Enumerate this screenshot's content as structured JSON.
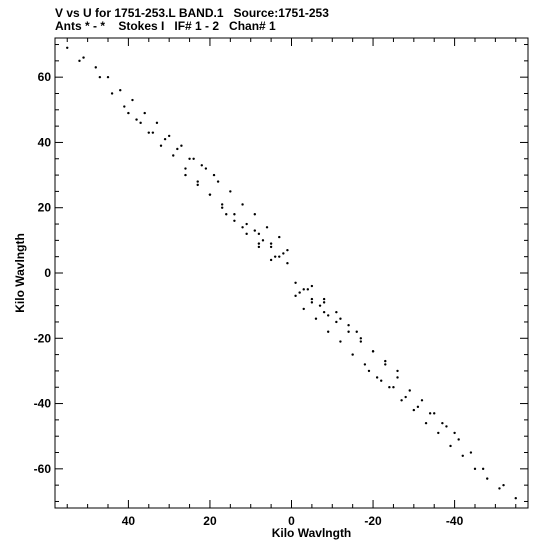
{
  "chart_data": {
    "type": "scatter",
    "title": "V vs U for 1751-253.L BAND.1   Source:1751-253",
    "subtitle": "Ants * - *    Stokes I   IF# 1 - 2   Chan# 1",
    "xlabel": "Kilo Wavlngth",
    "ylabel": "Kilo Wavlngth",
    "xlim": [
      58,
      -58
    ],
    "ylim": [
      -72,
      72
    ],
    "x_reversed": true,
    "grid": false,
    "xticks": [
      40,
      20,
      0,
      -20,
      -40
    ],
    "xtick_labels": [
      "40",
      "20",
      "0",
      "-20",
      "-40"
    ],
    "yticks": [
      60,
      40,
      20,
      0,
      -20,
      -40,
      -60
    ],
    "ytick_labels": [
      "60",
      "40",
      "20",
      "0",
      "-20",
      "-40",
      "-60"
    ],
    "series": [
      {
        "marker": "dot",
        "color": "#000000",
        "points": [
          [
            55,
            69
          ],
          [
            51,
            66
          ],
          [
            48,
            63
          ],
          [
            45,
            60
          ],
          [
            42,
            56
          ],
          [
            39,
            53
          ],
          [
            36,
            49
          ],
          [
            33,
            46
          ],
          [
            30,
            42
          ],
          [
            27,
            39
          ],
          [
            24,
            35
          ],
          [
            21,
            32
          ],
          [
            18,
            28
          ],
          [
            15,
            25
          ],
          [
            12,
            21
          ],
          [
            9,
            18
          ],
          [
            6,
            14
          ],
          [
            3,
            11
          ],
          [
            1,
            7
          ],
          [
            -1,
            -7
          ],
          [
            -3,
            -11
          ],
          [
            -6,
            -14
          ],
          [
            -9,
            -18
          ],
          [
            -12,
            -21
          ],
          [
            -15,
            -25
          ],
          [
            -18,
            -28
          ],
          [
            -21,
            -32
          ],
          [
            -24,
            -35
          ],
          [
            -27,
            -39
          ],
          [
            -30,
            -42
          ],
          [
            -33,
            -46
          ],
          [
            -36,
            -49
          ],
          [
            -39,
            -53
          ],
          [
            -42,
            -56
          ],
          [
            -45,
            -60
          ],
          [
            -48,
            -63
          ],
          [
            -51,
            -66
          ],
          [
            -55,
            -69
          ],
          [
            52,
            65
          ],
          [
            47,
            60
          ],
          [
            44,
            55
          ],
          [
            41,
            51
          ],
          [
            38,
            47
          ],
          [
            35,
            43
          ],
          [
            32,
            39
          ],
          [
            29,
            36
          ],
          [
            26,
            32
          ],
          [
            23,
            28
          ],
          [
            20,
            24
          ],
          [
            17,
            20
          ],
          [
            14,
            16
          ],
          [
            11,
            12
          ],
          [
            8,
            8
          ],
          [
            5,
            4
          ],
          [
            -5,
            -4
          ],
          [
            -8,
            -8
          ],
          [
            -11,
            -12
          ],
          [
            -14,
            -16
          ],
          [
            -17,
            -20
          ],
          [
            -20,
            -24
          ],
          [
            -23,
            -28
          ],
          [
            -26,
            -32
          ],
          [
            -29,
            -36
          ],
          [
            -32,
            -39
          ],
          [
            -35,
            -43
          ],
          [
            -38,
            -47
          ],
          [
            -41,
            -51
          ],
          [
            -44,
            -55
          ],
          [
            -47,
            -60
          ],
          [
            -52,
            -65
          ],
          [
            40,
            49
          ],
          [
            37,
            46
          ],
          [
            34,
            43
          ],
          [
            31,
            41
          ],
          [
            28,
            38
          ],
          [
            25,
            35
          ],
          [
            22,
            33
          ],
          [
            19,
            30
          ],
          [
            -40,
            -49
          ],
          [
            -37,
            -46
          ],
          [
            -34,
            -43
          ],
          [
            -31,
            -41
          ],
          [
            -28,
            -38
          ],
          [
            -25,
            -35
          ],
          [
            -22,
            -33
          ],
          [
            -19,
            -30
          ],
          [
            26,
            30
          ],
          [
            23,
            27
          ],
          [
            20,
            24
          ],
          [
            17,
            21
          ],
          [
            14,
            18
          ],
          [
            11,
            15
          ],
          [
            8,
            12
          ],
          [
            5,
            9
          ],
          [
            2,
            6
          ],
          [
            -26,
            -30
          ],
          [
            -23,
            -27
          ],
          [
            -20,
            -24
          ],
          [
            -17,
            -21
          ],
          [
            -14,
            -18
          ],
          [
            -11,
            -15
          ],
          [
            -8,
            -12
          ],
          [
            -5,
            -9
          ],
          [
            -2,
            -6
          ],
          [
            9,
            13
          ],
          [
            7,
            10
          ],
          [
            5,
            8
          ],
          [
            3,
            5
          ],
          [
            1,
            3
          ],
          [
            -1,
            -3
          ],
          [
            -3,
            -5
          ],
          [
            -5,
            -8
          ],
          [
            -7,
            -10
          ],
          [
            -9,
            -13
          ],
          [
            16,
            18
          ],
          [
            12,
            14
          ],
          [
            8,
            9
          ],
          [
            4,
            5
          ],
          [
            -4,
            -5
          ],
          [
            -8,
            -9
          ],
          [
            -12,
            -14
          ],
          [
            -16,
            -18
          ]
        ]
      }
    ]
  }
}
